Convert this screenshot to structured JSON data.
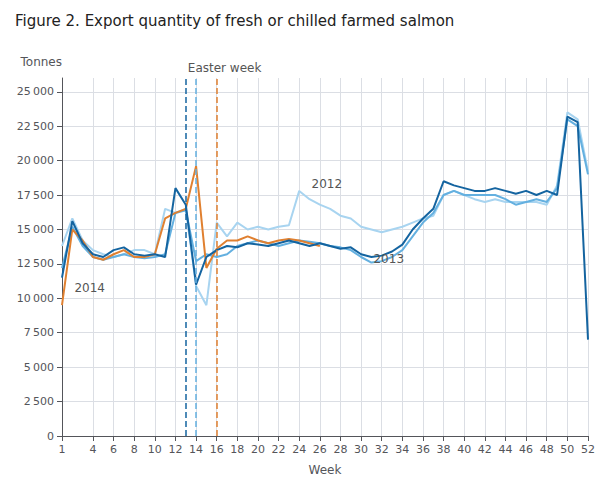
{
  "chart_data": {
    "type": "line",
    "title": "Figure 2. Export quantity of fresh or chilled farmed salmon",
    "xlabel": "Week",
    "ylabel": "Tonnes",
    "x": [
      1,
      2,
      3,
      4,
      5,
      6,
      7,
      8,
      9,
      10,
      11,
      12,
      13,
      14,
      15,
      16,
      17,
      18,
      19,
      20,
      21,
      22,
      23,
      24,
      25,
      26,
      27,
      28,
      29,
      30,
      31,
      32,
      33,
      34,
      35,
      36,
      37,
      38,
      39,
      40,
      41,
      42,
      43,
      44,
      45,
      46,
      47,
      48,
      49,
      50,
      51,
      52
    ],
    "series": [
      {
        "name": "2012",
        "color": "#a8d4f0",
        "values": [
          13800,
          15800,
          14200,
          13500,
          13200,
          13000,
          13200,
          13500,
          13500,
          13200,
          16500,
          16200,
          16500,
          10900,
          9500,
          15500,
          14500,
          15500,
          15000,
          15200,
          15000,
          15200,
          15300,
          17800,
          17200,
          16800,
          16500,
          16000,
          15800,
          15200,
          15000,
          14800,
          15000,
          15200,
          15500,
          15800,
          16000,
          17500,
          17800,
          17500,
          17200,
          17000,
          17200,
          17000,
          17000,
          17000,
          17000,
          16800,
          18200,
          23500,
          23000,
          19200
        ]
      },
      {
        "name": "2013",
        "color": "#64b0e0",
        "values": [
          12200,
          15200,
          13800,
          13000,
          12800,
          13000,
          13200,
          13000,
          12900,
          13000,
          13200,
          16200,
          16400,
          12700,
          13200,
          13000,
          13200,
          13800,
          14000,
          14200,
          14000,
          13800,
          14000,
          14200,
          14100,
          14000,
          13800,
          13700,
          13500,
          13000,
          12600,
          12700,
          13000,
          13500,
          14500,
          15500,
          16200,
          17500,
          17800,
          17500,
          17500,
          17500,
          17500,
          17200,
          16800,
          17000,
          17200,
          17000,
          18000,
          23000,
          22500,
          19000
        ]
      },
      {
        "color": "#e08030",
        "values": [
          9500,
          15000,
          14200,
          13000,
          12800,
          13200,
          13500,
          13000,
          13000,
          13200,
          15800,
          16200,
          16500,
          19600,
          12200,
          13600,
          14200,
          14200,
          14500,
          14200,
          14000,
          14200,
          14300,
          14200,
          14000,
          13800,
          null,
          null,
          null,
          null,
          null,
          null,
          null,
          null,
          null,
          null,
          null,
          null,
          null,
          null,
          null,
          null,
          null,
          null,
          null,
          null,
          null,
          null,
          null,
          null,
          null,
          null
        ]
      },
      {
        "name": "2014",
        "color": "#1464a0",
        "values": [
          11500,
          15600,
          14000,
          13200,
          13000,
          13500,
          13700,
          13200,
          13100,
          13200,
          13000,
          18000,
          16800,
          11000,
          13000,
          13500,
          13800,
          13700,
          14000,
          13900,
          13800,
          14000,
          14200,
          14000,
          13800,
          14000,
          13800,
          13600,
          13700,
          13200,
          13000,
          13100,
          13400,
          13900,
          15000,
          15800,
          16500,
          18500,
          18200,
          18000,
          17800,
          17800,
          18000,
          17800,
          17600,
          17800,
          17500,
          17800,
          17500,
          23200,
          22800,
          7000
        ]
      }
    ],
    "vlines": [
      {
        "x": 13,
        "color": "#1464a0",
        "line_style": "dashed"
      },
      {
        "x": 14,
        "color": "#64b0e0",
        "line_style": "dashed"
      },
      {
        "x": 16,
        "color": "#e08030",
        "line_style": "dashed"
      }
    ],
    "annotations": [
      {
        "text": "Easter week",
        "x": 13.2
      },
      {
        "text": "2012",
        "x": 25.2,
        "y": 17900
      },
      {
        "text": "2013",
        "x": 31.2,
        "y": 12400
      },
      {
        "text": "2014",
        "x": 2.2,
        "y": 10300
      }
    ],
    "xlim": [
      1,
      52
    ],
    "xticks": [
      1,
      4,
      6,
      8,
      10,
      12,
      14,
      16,
      18,
      20,
      22,
      24,
      26,
      28,
      30,
      32,
      34,
      36,
      38,
      40,
      42,
      44,
      46,
      48,
      50,
      52
    ],
    "ylim": [
      0,
      26000
    ],
    "yticks": [
      0,
      {
        "value": 2500,
        "label": "2 500"
      },
      {
        "value": 5000,
        "label": "5 000"
      },
      {
        "value": 7500,
        "label": "7 500"
      },
      {
        "value": 10000,
        "label": "10 000"
      },
      {
        "value": 12500,
        "label": "12 500"
      },
      {
        "value": 15000,
        "label": "15 000"
      },
      {
        "value": 17500,
        "label": "17 500"
      },
      {
        "value": 20000,
        "label": "20 000"
      },
      {
        "value": 22500,
        "label": "22 500"
      },
      {
        "value": 25000,
        "label": "25 000"
      }
    ],
    "grid": true
  }
}
